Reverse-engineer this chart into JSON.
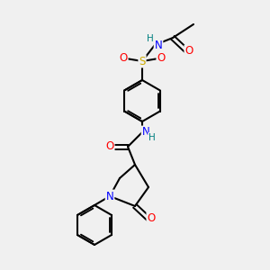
{
  "bg_color": "#f0f0f0",
  "atom_colors": {
    "C": "#000000",
    "N": "#0000ff",
    "O": "#ff0000",
    "S": "#ccaa00",
    "H": "#008080"
  },
  "bond_color": "#000000",
  "bond_width": 1.5,
  "figsize": [
    3.0,
    3.0
  ],
  "dpi": 100
}
